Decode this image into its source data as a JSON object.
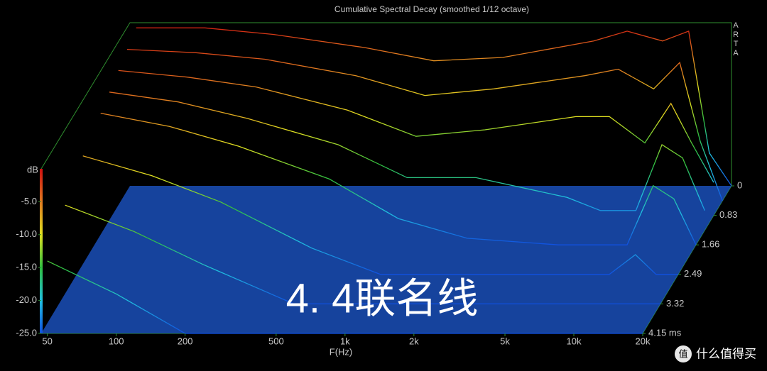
{
  "chart_data": {
    "type": "waterfall",
    "title": "Cumulative Spectral Decay (smoothed 1/12 octave)",
    "side_label": "ARTA",
    "x_label": "F(Hz)",
    "y_label": "dB",
    "log_x": true,
    "xlim": [
      47,
      20000
    ],
    "xticks": [
      50,
      100,
      200,
      500,
      {
        "value": 1000,
        "label": "1k"
      },
      {
        "value": 2000,
        "label": "2k"
      },
      {
        "value": 5000,
        "label": "5k"
      },
      {
        "value": 10000,
        "label": "10k"
      },
      {
        "value": 20000,
        "label": "20k"
      }
    ],
    "ylim": [
      -25,
      0
    ],
    "yticks": [
      {
        "value": -5,
        "label": "-5.0"
      },
      {
        "value": -10,
        "label": "-10.0"
      },
      {
        "value": -15,
        "label": "-15.0"
      },
      {
        "value": -20,
        "label": "-20.0"
      },
      {
        "value": -25,
        "label": "-25.0"
      }
    ],
    "tlim": [
      0,
      4.15
    ],
    "tticks": [
      0,
      0.83,
      1.66,
      2.49,
      3.32,
      {
        "value": 4.15,
        "label": "4.15 ms"
      }
    ],
    "colormap": [
      "#d01010",
      "#e07a20",
      "#e0e020",
      "#30c040",
      "#20c0e0",
      "#1050e0"
    ],
    "floor_color": "#1a4fb8",
    "x": [
      50,
      100,
      200,
      500,
      1000,
      2000,
      5000,
      7000,
      10000,
      13000,
      16000,
      20000
    ],
    "slices": [
      {
        "t": 0,
        "values": [
          -1,
          -1,
          -2,
          -4,
          -6,
          -5.5,
          -3,
          -1.5,
          -3,
          -1.5,
          -20,
          -25
        ]
      },
      {
        "t": 0.42,
        "values": [
          -2,
          -2.5,
          -3.5,
          -6,
          -9,
          -8,
          -6,
          -5,
          -8,
          -4,
          -16,
          -25
        ]
      },
      {
        "t": 0.83,
        "values": [
          -3,
          -4,
          -5.5,
          -9,
          -13,
          -12,
          -10,
          -10,
          -14,
          -8,
          -14,
          -20
        ]
      },
      {
        "t": 1.25,
        "values": [
          -4,
          -5.5,
          -8,
          -12,
          -17,
          -17,
          -20,
          -22,
          -22,
          -12,
          -14,
          -22
        ]
      },
      {
        "t": 1.66,
        "values": [
          -5,
          -7,
          -10,
          -15,
          -21,
          -24,
          -25,
          -25,
          -25,
          -16,
          -18,
          -25
        ]
      },
      {
        "t": 2.49,
        "values": [
          -7,
          -10,
          -14,
          -21,
          -25,
          -25,
          -25,
          -25,
          -25,
          -22,
          -25,
          -25
        ]
      },
      {
        "t": 3.32,
        "values": [
          -10,
          -14,
          -19,
          -25,
          -25,
          -25,
          -25,
          -25,
          -25,
          -25,
          -25,
          -25
        ]
      },
      {
        "t": 4.15,
        "values": [
          -14,
          -19,
          -25,
          -25,
          -25,
          -25,
          -25,
          -25,
          -25,
          -25,
          -25,
          -25
        ]
      }
    ],
    "watermark": "4. 4联名线",
    "logo_icon": "值",
    "logo_text": "什么值得买"
  }
}
